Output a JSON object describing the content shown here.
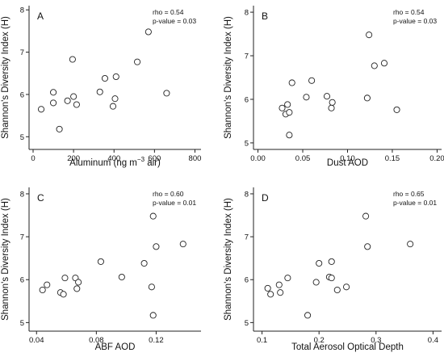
{
  "chart_data": [
    {
      "type": "scatter",
      "panel_label": "A",
      "xlabel_main": "Aluminum  (ng  m",
      "xlabel_sup": "−3",
      "xlabel_tail": " air)",
      "ylabel": "Shannon's Diversity Index (H)",
      "stat_rho": "rho = 0.54",
      "stat_p": "p-value = 0.03",
      "xlim": [
        -20,
        830
      ],
      "ylim": [
        4.7,
        8.1
      ],
      "xticks": [
        0,
        200,
        400,
        600,
        800
      ],
      "yticks": [
        5,
        6,
        7,
        8
      ],
      "x": [
        40,
        100,
        100,
        130,
        170,
        195,
        200,
        215,
        330,
        355,
        395,
        405,
        410,
        515,
        570,
        660
      ],
      "y": [
        5.65,
        5.8,
        6.05,
        5.18,
        5.85,
        6.83,
        5.95,
        5.76,
        6.06,
        6.38,
        5.72,
        5.9,
        6.42,
        6.77,
        7.48,
        6.03
      ]
    },
    {
      "type": "scatter",
      "panel_label": "B",
      "xlabel_main": "Dust AOD",
      "xlabel_sup": "",
      "xlabel_tail": "",
      "ylabel": "Shannon's Diversity Index (H)",
      "stat_rho": "rho = 0.54",
      "stat_p": "p-value = 0.03",
      "xlim": [
        -0.005,
        0.205
      ],
      "ylim": [
        4.85,
        8.15
      ],
      "xticks": [
        0.0,
        0.05,
        0.1,
        0.15,
        0.2
      ],
      "xtick_labels": [
        "0.00",
        "0.05",
        "0.10",
        "0.15",
        "0.20"
      ],
      "yticks": [
        5,
        6,
        7,
        8
      ],
      "x": [
        0.027,
        0.031,
        0.033,
        0.035,
        0.035,
        0.038,
        0.054,
        0.06,
        0.077,
        0.082,
        0.083,
        0.122,
        0.124,
        0.13,
        0.141,
        0.155
      ],
      "y": [
        5.8,
        5.66,
        5.88,
        5.18,
        5.7,
        6.38,
        6.05,
        6.43,
        6.07,
        5.8,
        5.93,
        6.03,
        7.48,
        6.77,
        6.83,
        5.76
      ]
    },
    {
      "type": "scatter",
      "panel_label": "C",
      "xlabel_main": "ABF AOD",
      "xlabel_sup": "",
      "xlabel_tail": "",
      "ylabel": "Shannon's Diversity Index (H)",
      "stat_rho": "rho = 0.60",
      "stat_p": "p-value = 0.01",
      "xlim": [
        0.035,
        0.15
      ],
      "ylim": [
        4.8,
        8.15
      ],
      "xticks": [
        0.04,
        0.08,
        0.12
      ],
      "xtick_labels": [
        "0.04",
        "0.08",
        "0.12"
      ],
      "yticks": [
        5,
        6,
        7,
        8
      ],
      "x": [
        0.044,
        0.047,
        0.056,
        0.058,
        0.059,
        0.066,
        0.067,
        0.068,
        0.083,
        0.097,
        0.112,
        0.117,
        0.118,
        0.118,
        0.12,
        0.138
      ],
      "y": [
        5.76,
        5.88,
        5.7,
        5.66,
        6.04,
        6.04,
        5.79,
        5.94,
        6.42,
        6.06,
        6.38,
        5.83,
        5.17,
        7.48,
        6.77,
        6.83
      ]
    },
    {
      "type": "scatter",
      "panel_label": "D",
      "xlabel_main": "Total Aerosol Optical Depth",
      "xlabel_sup": "",
      "xlabel_tail": "",
      "ylabel": "Shannon's Diversity Index (H)",
      "stat_rho": "rho = 0.65",
      "stat_p": "p-value = 0.01",
      "xlim": [
        0.085,
        0.415
      ],
      "ylim": [
        4.8,
        8.15
      ],
      "xticks": [
        0.1,
        0.2,
        0.3,
        0.4
      ],
      "xtick_labels": [
        "0.1",
        "0.2",
        "0.3",
        "0.4"
      ],
      "yticks": [
        5,
        6,
        7,
        8
      ],
      "x": [
        0.11,
        0.115,
        0.13,
        0.132,
        0.145,
        0.18,
        0.195,
        0.2,
        0.218,
        0.222,
        0.222,
        0.232,
        0.248,
        0.282,
        0.285,
        0.36
      ],
      "y": [
        5.8,
        5.66,
        5.88,
        5.7,
        6.04,
        5.17,
        5.94,
        6.38,
        6.06,
        6.42,
        6.04,
        5.76,
        5.83,
        7.48,
        6.77,
        6.83
      ]
    }
  ]
}
